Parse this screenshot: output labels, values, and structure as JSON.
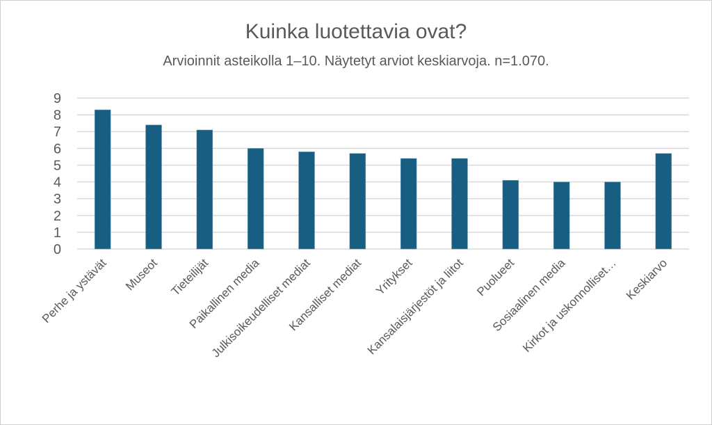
{
  "chart_data": {
    "type": "bar",
    "title": "Kuinka luotettavia ovat?",
    "subtitle": "Arvioinnit asteikolla 1–10. Näytetyt arviot keskiarvoja. n=1.070.",
    "xlabel": "",
    "ylabel": "",
    "ylim": [
      0,
      9
    ],
    "yticks": [
      "0",
      "1",
      "2",
      "3",
      "4",
      "5",
      "6",
      "7",
      "8",
      "9"
    ],
    "grid": true,
    "categories": [
      "Perhe ja ystävät",
      "Museot",
      "Tieteilijät",
      "Paikallinen media",
      "Julkisoikeudelliset mediat",
      "Kansalliset mediat",
      "Yritykset",
      "Kansalaisjärjestöt ja liitot",
      "Puolueet",
      "Sosiaalinen media",
      "Kirkot ja uskonnolliset…",
      "Keskiarvo"
    ],
    "values": [
      8.3,
      7.4,
      7.1,
      6.0,
      5.8,
      5.7,
      5.4,
      5.4,
      4.1,
      4.0,
      4.0,
      5.7
    ],
    "bar_color": "#175e82",
    "grid_color": "#d9d9d9"
  }
}
